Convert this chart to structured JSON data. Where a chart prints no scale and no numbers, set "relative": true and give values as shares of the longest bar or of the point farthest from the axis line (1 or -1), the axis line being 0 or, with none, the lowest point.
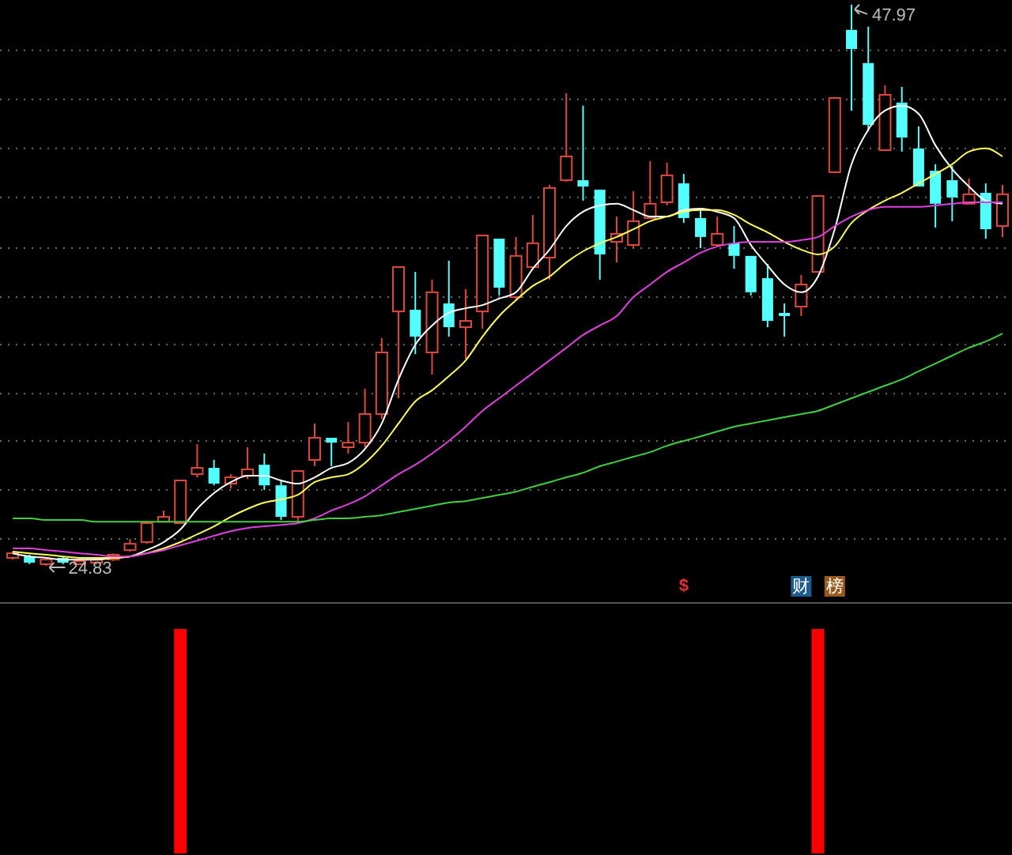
{
  "chart_data": [
    {
      "type": "candlestick",
      "categories": [
        null,
        null,
        null,
        null,
        null,
        null,
        null,
        null,
        null,
        null,
        null,
        null,
        null,
        null,
        null,
        null,
        null,
        null,
        null,
        null,
        null,
        null,
        null,
        null,
        null,
        null,
        null,
        null,
        null,
        null,
        null,
        null,
        null,
        null,
        null,
        null,
        null,
        null,
        null,
        null,
        null,
        null,
        null,
        null,
        null,
        null,
        null,
        null,
        null,
        null,
        null,
        null,
        null,
        null,
        null,
        null,
        null,
        null,
        null,
        null
      ],
      "ohlc": [
        [
          25.16,
          25.42,
          25.09,
          25.35
        ],
        [
          25.22,
          25.29,
          24.9,
          24.96
        ],
        [
          24.9,
          25.16,
          24.83,
          25.09
        ],
        [
          25.16,
          25.22,
          24.9,
          24.96
        ],
        [
          24.9,
          25.09,
          24.9,
          25.03
        ],
        [
          24.96,
          25.16,
          24.9,
          25.09
        ],
        [
          25.09,
          25.35,
          25.03,
          25.29
        ],
        [
          25.48,
          25.94,
          25.42,
          25.74
        ],
        [
          25.81,
          26.65,
          25.74,
          26.59
        ],
        [
          26.65,
          27.11,
          26.65,
          26.85
        ],
        [
          26.59,
          28.35,
          26.59,
          28.35
        ],
        [
          28.61,
          29.85,
          28.48,
          28.87
        ],
        [
          28.87,
          29.2,
          28.15,
          28.22
        ],
        [
          28.22,
          28.61,
          28.02,
          28.48
        ],
        [
          28.55,
          29.72,
          28.41,
          28.81
        ],
        [
          29.0,
          29.46,
          27.96,
          28.15
        ],
        [
          28.15,
          28.35,
          26.72,
          26.85
        ],
        [
          26.85,
          28.74,
          26.65,
          28.74
        ],
        [
          29.2,
          30.7,
          28.94,
          30.11
        ],
        [
          30.11,
          30.11,
          28.94,
          29.91
        ],
        [
          29.72,
          30.76,
          29.46,
          29.91
        ],
        [
          29.91,
          32.13,
          29.72,
          31.09
        ],
        [
          31.09,
          34.22,
          30.89,
          33.63
        ],
        [
          35.32,
          37.15,
          31.74,
          37.15
        ],
        [
          35.39,
          36.95,
          33.56,
          34.28
        ],
        [
          33.63,
          36.63,
          32.72,
          36.11
        ],
        [
          35.65,
          37.41,
          34.28,
          34.67
        ],
        [
          34.67,
          36.24,
          33.37,
          34.93
        ],
        [
          35.32,
          38.45,
          34.61,
          38.45
        ],
        [
          38.32,
          38.32,
          35.98,
          36.3
        ],
        [
          35.91,
          38.39,
          35.78,
          37.61
        ],
        [
          37.15,
          39.3,
          37.15,
          38.13
        ],
        [
          37.54,
          40.54,
          36.63,
          40.41
        ],
        [
          40.73,
          44.32,
          40.67,
          41.71
        ],
        [
          40.73,
          43.8,
          39.89,
          40.47
        ],
        [
          40.34,
          40.34,
          36.63,
          37.67
        ],
        [
          38.19,
          39.23,
          37.34,
          38.52
        ],
        [
          38.06,
          40.28,
          37.93,
          39.04
        ],
        [
          39.17,
          41.52,
          39.17,
          39.76
        ],
        [
          39.82,
          41.45,
          39.69,
          40.93
        ],
        [
          40.6,
          40.99,
          38.97,
          39.17
        ],
        [
          39.17,
          39.56,
          37.93,
          38.39
        ],
        [
          38.06,
          39.23,
          38.06,
          38.52
        ],
        [
          38.13,
          38.84,
          37.08,
          37.61
        ],
        [
          37.61,
          37.61,
          35.98,
          36.11
        ],
        [
          36.69,
          37.28,
          34.67,
          34.93
        ],
        [
          35.26,
          35.65,
          34.28,
          35.13
        ],
        [
          35.52,
          36.82,
          35.13,
          36.43
        ],
        [
          36.95,
          40.08,
          36.95,
          40.08
        ],
        [
          41.06,
          44.12,
          41.06,
          44.12
        ],
        [
          46.93,
          47.97,
          43.6,
          46.14
        ],
        [
          45.56,
          47.06,
          42.75,
          43.01
        ],
        [
          41.97,
          44.64,
          41.97,
          44.25
        ],
        [
          43.93,
          44.58,
          41.91,
          42.49
        ],
        [
          42.04,
          42.95,
          40.47,
          40.47
        ],
        [
          41.12,
          41.39,
          38.78,
          39.76
        ],
        [
          40.73,
          41.32,
          39.04,
          40.02
        ],
        [
          39.76,
          40.8,
          39.76,
          40.15
        ],
        [
          40.21,
          40.6,
          38.32,
          38.71
        ],
        [
          38.84,
          40.54,
          38.39,
          40.15
        ]
      ],
      "colors": [
        "#e0483c",
        "#54ffff",
        "#e0483c",
        "#54ffff",
        "#e0483c",
        "#e0483c",
        "#e0483c",
        "#e0483c",
        "#e0483c",
        "#e0483c",
        "#e0483c",
        "#e0483c",
        "#54ffff",
        "#e0483c",
        "#e0483c",
        "#54ffff",
        "#54ffff",
        "#e0483c",
        "#e0483c",
        "#54ffff",
        "#e0483c",
        "#e0483c",
        "#e0483c",
        "#e0483c",
        "#54ffff",
        "#e0483c",
        "#54ffff",
        "#e0483c",
        "#e0483c",
        "#54ffff",
        "#e0483c",
        "#e0483c",
        "#e0483c",
        "#e0483c",
        "#54ffff",
        "#54ffff",
        "#e0483c",
        "#e0483c",
        "#e0483c",
        "#e0483c",
        "#54ffff",
        "#54ffff",
        "#e0483c",
        "#54ffff",
        "#54ffff",
        "#54ffff",
        "#54ffff",
        "#e0483c",
        "#e0483c",
        "#e0483c",
        "#54ffff",
        "#54ffff",
        "#e0483c",
        "#54ffff",
        "#54ffff",
        "#54ffff",
        "#54ffff",
        "#e0483c",
        "#54ffff",
        "#e0483c"
      ],
      "series": [
        {
          "type": "line",
          "color": "#ffffff",
          "values": [
            25.35,
            25.22,
            25.16,
            25.09,
            25.09,
            25.09,
            25.16,
            25.22,
            25.48,
            25.81,
            26.33,
            27.18,
            27.83,
            28.28,
            28.55,
            28.55,
            28.35,
            28.22,
            28.48,
            28.87,
            29.07,
            29.65,
            30.7,
            32.52,
            33.95,
            34.74,
            35.26,
            35.45,
            35.58,
            35.85,
            36.11,
            37.08,
            37.87,
            38.84,
            39.43,
            39.69,
            39.76,
            39.5,
            39.23,
            39.23,
            39.5,
            39.56,
            39.43,
            39.17,
            38.06,
            37.21,
            36.43,
            36.11,
            36.76,
            38.71,
            41.39,
            42.82,
            43.6,
            43.8,
            43.47,
            42.17,
            41.19,
            40.47,
            39.89,
            39.76
          ]
        },
        {
          "type": "line",
          "color": "#ffff55",
          "values": [
            25.42,
            25.35,
            25.29,
            25.22,
            25.16,
            25.16,
            25.16,
            25.22,
            25.35,
            25.55,
            25.81,
            26.13,
            26.46,
            26.85,
            27.18,
            27.44,
            27.57,
            27.76,
            28.28,
            28.48,
            28.61,
            29.07,
            29.78,
            30.7,
            31.61,
            32.07,
            32.65,
            33.3,
            34.28,
            35.13,
            35.78,
            36.37,
            36.76,
            37.34,
            37.8,
            38.13,
            38.39,
            38.71,
            39.04,
            39.23,
            39.43,
            39.5,
            39.5,
            39.3,
            38.91,
            38.58,
            38.19,
            37.87,
            37.67,
            38.0,
            38.97,
            39.5,
            39.89,
            40.21,
            40.6,
            40.99,
            41.39,
            41.91,
            42.04,
            41.71
          ]
        },
        {
          "type": "line",
          "color": "#e040e0",
          "values": [
            25.55,
            25.55,
            25.48,
            25.42,
            25.35,
            25.29,
            25.22,
            25.22,
            25.35,
            25.48,
            25.68,
            25.87,
            26.07,
            26.26,
            26.39,
            26.46,
            26.52,
            26.59,
            26.79,
            27.11,
            27.37,
            27.7,
            28.15,
            28.61,
            29.0,
            29.46,
            29.98,
            30.57,
            31.22,
            31.74,
            32.26,
            32.78,
            33.3,
            33.82,
            34.35,
            34.74,
            35.13,
            35.91,
            36.43,
            36.95,
            37.34,
            37.74,
            38.0,
            38.13,
            38.19,
            38.19,
            38.19,
            38.26,
            38.39,
            38.84,
            39.23,
            39.5,
            39.63,
            39.63,
            39.63,
            39.69,
            39.76,
            39.82,
            39.82,
            39.82
          ]
        },
        {
          "type": "line",
          "color": "#40d040",
          "values": [
            26.79,
            26.79,
            26.72,
            26.72,
            26.72,
            26.65,
            26.65,
            26.65,
            26.65,
            26.65,
            26.65,
            26.65,
            26.65,
            26.65,
            26.65,
            26.65,
            26.65,
            26.65,
            26.72,
            26.79,
            26.79,
            26.85,
            26.92,
            27.05,
            27.18,
            27.31,
            27.44,
            27.5,
            27.63,
            27.76,
            27.89,
            28.09,
            28.28,
            28.48,
            28.67,
            28.94,
            29.13,
            29.33,
            29.52,
            29.78,
            29.98,
            30.17,
            30.37,
            30.57,
            30.7,
            30.83,
            30.96,
            31.09,
            31.22,
            31.48,
            31.74,
            32.0,
            32.26,
            32.52,
            32.85,
            33.17,
            33.5,
            33.82,
            34.08,
            34.41
          ]
        }
      ],
      "ylim": [
        23.4,
        48.16
      ],
      "yticks": [
        {
          "value": 25.94,
          "label": null
        },
        {
          "value": 27.96,
          "label": null
        },
        {
          "value": 29.98,
          "label": null
        },
        {
          "value": 31.93,
          "label": null
        },
        {
          "value": 33.95,
          "label": null
        },
        {
          "value": 35.91,
          "label": null
        },
        {
          "value": 37.93,
          "label": null
        },
        {
          "value": 40.02,
          "label": null
        },
        {
          "value": 42.04,
          "label": null
        },
        {
          "value": 44.06,
          "label": null
        },
        {
          "value": 46.08,
          "label": null
        }
      ],
      "grid": "y",
      "annotations": [
        "47.97",
        "24.83",
        "$",
        "财",
        "榜"
      ]
    },
    {
      "type": "bar",
      "categories": [
        null,
        null,
        null,
        null,
        null,
        null,
        null,
        null,
        null,
        null,
        null,
        null,
        null,
        null,
        null,
        null,
        null,
        null,
        null,
        null,
        null,
        null,
        null,
        null,
        null,
        null,
        null,
        null,
        null,
        null,
        null,
        null,
        null,
        null,
        null,
        null,
        null,
        null,
        null,
        null,
        null,
        null,
        null,
        null,
        null,
        null,
        null,
        null,
        null,
        null,
        null,
        null,
        null,
        null,
        null,
        null,
        null,
        null,
        null,
        null
      ],
      "values": [
        null,
        null,
        null,
        null,
        null,
        null,
        null,
        null,
        null,
        null,
        1,
        null,
        null,
        null,
        null,
        null,
        null,
        null,
        null,
        null,
        null,
        null,
        null,
        null,
        null,
        null,
        null,
        null,
        null,
        null,
        null,
        null,
        null,
        null,
        null,
        null,
        null,
        null,
        null,
        null,
        null,
        null,
        null,
        null,
        null,
        null,
        null,
        null,
        1,
        null,
        null,
        null,
        null,
        null,
        null,
        null,
        null,
        null,
        null,
        null
      ],
      "color": "#ff0000",
      "relative": true
    }
  ]
}
